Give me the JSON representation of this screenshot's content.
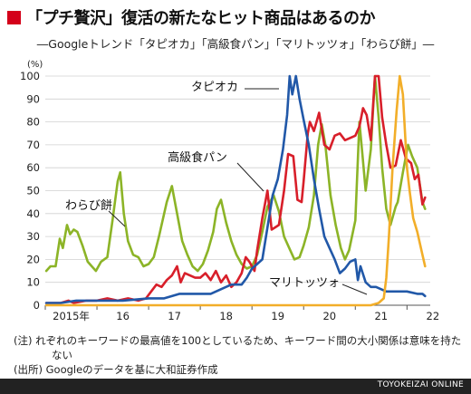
{
  "title": "「プチ贅沢」復活の新たなヒット商品はあるのか",
  "subtitle": "―Googleトレンド「タピオカ」「高級食パン」「マリトッツォ」「わらび餅」―",
  "notes": [
    "(注) れぞれのキーワードの最高値を100としているため、キーワード間の大小関係は意味を持た",
    "ない",
    "(出所) Googleのデータを基に大和証券作成"
  ],
  "footer": "TOYOKEIZAI ONLINE",
  "colors": {
    "title_square": "#d4001a",
    "tapioca": "#2158a8",
    "shokupan": "#d81f2a",
    "maritozzo": "#f2ae29",
    "warabimochi": "#8cb427",
    "grid": "#d0d0d0"
  },
  "chart_data": {
    "type": "line",
    "ylabel": "(%)",
    "ylim": [
      0,
      100
    ],
    "yticks": [
      0,
      10,
      20,
      30,
      40,
      50,
      60,
      70,
      80,
      90,
      100
    ],
    "x_labels": [
      "2015年",
      "16",
      "17",
      "18",
      "19",
      "20",
      "21",
      "22"
    ],
    "x_domain": [
      0,
      7.45
    ],
    "grid": "horizontal",
    "series": [
      {
        "name": "わらび餅",
        "color_key": "warabimochi",
        "points": [
          [
            0.02,
            15
          ],
          [
            0.1,
            17
          ],
          [
            0.2,
            17
          ],
          [
            0.28,
            29
          ],
          [
            0.34,
            25
          ],
          [
            0.42,
            35
          ],
          [
            0.48,
            31
          ],
          [
            0.55,
            33
          ],
          [
            0.62,
            32
          ],
          [
            0.72,
            26
          ],
          [
            0.82,
            19
          ],
          [
            0.9,
            17
          ],
          [
            0.98,
            15
          ],
          [
            1.08,
            19
          ],
          [
            1.2,
            21
          ],
          [
            1.3,
            37
          ],
          [
            1.4,
            54
          ],
          [
            1.45,
            58
          ],
          [
            1.52,
            40
          ],
          [
            1.6,
            28
          ],
          [
            1.7,
            22
          ],
          [
            1.8,
            21
          ],
          [
            1.9,
            17
          ],
          [
            2.0,
            18
          ],
          [
            2.1,
            21
          ],
          [
            2.2,
            30
          ],
          [
            2.35,
            45
          ],
          [
            2.45,
            52
          ],
          [
            2.55,
            40
          ],
          [
            2.65,
            28
          ],
          [
            2.75,
            22
          ],
          [
            2.85,
            17
          ],
          [
            2.95,
            15
          ],
          [
            3.05,
            18
          ],
          [
            3.15,
            24
          ],
          [
            3.25,
            32
          ],
          [
            3.32,
            42
          ],
          [
            3.4,
            46
          ],
          [
            3.5,
            36
          ],
          [
            3.6,
            28
          ],
          [
            3.7,
            22
          ],
          [
            3.8,
            18
          ],
          [
            3.9,
            16
          ],
          [
            4.0,
            17
          ],
          [
            4.1,
            22
          ],
          [
            4.2,
            32
          ],
          [
            4.3,
            43
          ],
          [
            4.42,
            48
          ],
          [
            4.52,
            41
          ],
          [
            4.62,
            30
          ],
          [
            4.72,
            25
          ],
          [
            4.82,
            20
          ],
          [
            4.92,
            21
          ],
          [
            5.0,
            26
          ],
          [
            5.1,
            34
          ],
          [
            5.2,
            48
          ],
          [
            5.28,
            70
          ],
          [
            5.35,
            79
          ],
          [
            5.42,
            70
          ],
          [
            5.52,
            48
          ],
          [
            5.62,
            35
          ],
          [
            5.72,
            25
          ],
          [
            5.8,
            20
          ],
          [
            5.88,
            24
          ],
          [
            6.0,
            37
          ],
          [
            6.08,
            80
          ],
          [
            6.14,
            65
          ],
          [
            6.2,
            50
          ],
          [
            6.3,
            68
          ],
          [
            6.38,
            100
          ],
          [
            6.45,
            82
          ],
          [
            6.52,
            60
          ],
          [
            6.6,
            42
          ],
          [
            6.68,
            35
          ],
          [
            6.78,
            43
          ],
          [
            6.82,
            45
          ],
          [
            6.92,
            58
          ],
          [
            7.02,
            70
          ],
          [
            7.1,
            65
          ],
          [
            7.2,
            60
          ],
          [
            7.3,
            45
          ],
          [
            7.35,
            42
          ]
        ]
      },
      {
        "name": "高級食パン",
        "color_key": "shokupan",
        "points": [
          [
            0.02,
            1
          ],
          [
            0.3,
            1
          ],
          [
            0.45,
            2
          ],
          [
            0.55,
            1
          ],
          [
            0.8,
            2
          ],
          [
            1.0,
            2
          ],
          [
            1.2,
            3
          ],
          [
            1.4,
            2
          ],
          [
            1.6,
            3
          ],
          [
            1.8,
            2
          ],
          [
            1.95,
            3
          ],
          [
            2.05,
            6
          ],
          [
            2.15,
            9
          ],
          [
            2.25,
            8
          ],
          [
            2.35,
            11
          ],
          [
            2.45,
            13
          ],
          [
            2.55,
            17
          ],
          [
            2.62,
            10
          ],
          [
            2.7,
            14
          ],
          [
            2.8,
            13
          ],
          [
            2.9,
            12
          ],
          [
            3.0,
            12
          ],
          [
            3.1,
            14
          ],
          [
            3.2,
            11
          ],
          [
            3.3,
            15
          ],
          [
            3.4,
            10
          ],
          [
            3.5,
            13
          ],
          [
            3.6,
            8
          ],
          [
            3.7,
            10
          ],
          [
            3.8,
            14
          ],
          [
            3.88,
            21
          ],
          [
            3.95,
            19
          ],
          [
            4.05,
            15
          ],
          [
            4.1,
            24
          ],
          [
            4.2,
            38
          ],
          [
            4.3,
            50
          ],
          [
            4.38,
            33
          ],
          [
            4.45,
            34
          ],
          [
            4.52,
            35
          ],
          [
            4.62,
            50
          ],
          [
            4.7,
            66
          ],
          [
            4.8,
            65
          ],
          [
            4.88,
            46
          ],
          [
            4.96,
            45
          ],
          [
            5.0,
            54
          ],
          [
            5.08,
            75
          ],
          [
            5.12,
            80
          ],
          [
            5.2,
            76
          ],
          [
            5.3,
            84
          ],
          [
            5.4,
            70
          ],
          [
            5.5,
            68
          ],
          [
            5.6,
            74
          ],
          [
            5.7,
            75
          ],
          [
            5.8,
            72
          ],
          [
            5.9,
            73
          ],
          [
            6.0,
            74
          ],
          [
            6.08,
            78
          ],
          [
            6.15,
            86
          ],
          [
            6.22,
            83
          ],
          [
            6.3,
            72
          ],
          [
            6.38,
            100
          ],
          [
            6.45,
            100
          ],
          [
            6.52,
            82
          ],
          [
            6.6,
            70
          ],
          [
            6.68,
            60
          ],
          [
            6.78,
            61
          ],
          [
            6.88,
            72
          ],
          [
            6.98,
            64
          ],
          [
            7.08,
            62
          ],
          [
            7.15,
            55
          ],
          [
            7.22,
            57
          ],
          [
            7.3,
            44
          ],
          [
            7.35,
            47
          ]
        ]
      },
      {
        "name": "タピオカ",
        "color_key": "tapioca",
        "points": [
          [
            0.02,
            1
          ],
          [
            0.3,
            1
          ],
          [
            0.6,
            2
          ],
          [
            1.0,
            2
          ],
          [
            1.5,
            2
          ],
          [
            2.0,
            3
          ],
          [
            2.3,
            3
          ],
          [
            2.45,
            4
          ],
          [
            2.6,
            5
          ],
          [
            2.8,
            5
          ],
          [
            3.0,
            5
          ],
          [
            3.2,
            5
          ],
          [
            3.4,
            7
          ],
          [
            3.6,
            9
          ],
          [
            3.8,
            9
          ],
          [
            3.9,
            12
          ],
          [
            4.0,
            16
          ],
          [
            4.1,
            18
          ],
          [
            4.2,
            20
          ],
          [
            4.3,
            34
          ],
          [
            4.4,
            48
          ],
          [
            4.5,
            55
          ],
          [
            4.6,
            68
          ],
          [
            4.68,
            83
          ],
          [
            4.73,
            100
          ],
          [
            4.78,
            92
          ],
          [
            4.85,
            100
          ],
          [
            4.92,
            90
          ],
          [
            5.0,
            81
          ],
          [
            5.1,
            70
          ],
          [
            5.2,
            55
          ],
          [
            5.3,
            42
          ],
          [
            5.4,
            30
          ],
          [
            5.5,
            25
          ],
          [
            5.6,
            20
          ],
          [
            5.7,
            14
          ],
          [
            5.8,
            16
          ],
          [
            5.9,
            19
          ],
          [
            6.0,
            20
          ],
          [
            6.05,
            11
          ],
          [
            6.1,
            17
          ],
          [
            6.2,
            10
          ],
          [
            6.3,
            8
          ],
          [
            6.4,
            8
          ],
          [
            6.5,
            7
          ],
          [
            6.6,
            6
          ],
          [
            6.8,
            6
          ],
          [
            7.0,
            6
          ],
          [
            7.2,
            5
          ],
          [
            7.3,
            5
          ],
          [
            7.35,
            4
          ]
        ]
      },
      {
        "name": "マリトッツォ",
        "color_key": "maritozzo",
        "points": [
          [
            0.02,
            0
          ],
          [
            6.3,
            0
          ],
          [
            6.45,
            1
          ],
          [
            6.55,
            3
          ],
          [
            6.6,
            12
          ],
          [
            6.65,
            30
          ],
          [
            6.72,
            60
          ],
          [
            6.8,
            85
          ],
          [
            6.86,
            100
          ],
          [
            6.92,
            92
          ],
          [
            7.0,
            60
          ],
          [
            7.05,
            50
          ],
          [
            7.12,
            38
          ],
          [
            7.2,
            32
          ],
          [
            7.3,
            22
          ],
          [
            7.35,
            17
          ]
        ]
      }
    ],
    "annotations": [
      {
        "text": "タピオカ",
        "series": "タピオカ"
      },
      {
        "text": "高級食パン",
        "series": "高級食パン"
      },
      {
        "text": "わらび餅",
        "series": "わらび餅"
      },
      {
        "text": "マリトッツォ",
        "series": "マリトッツォ"
      }
    ]
  }
}
